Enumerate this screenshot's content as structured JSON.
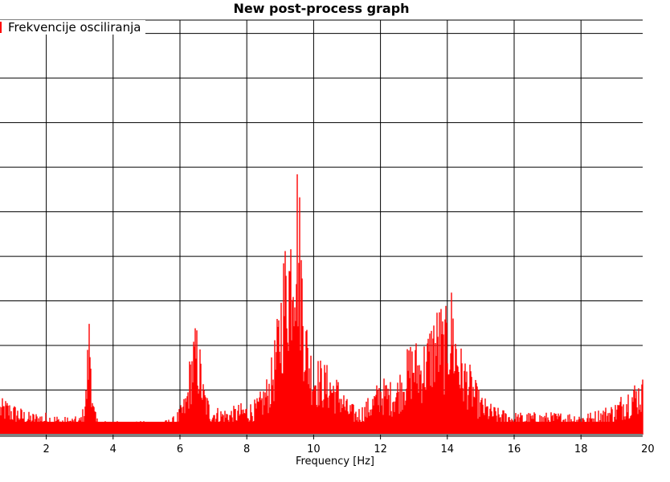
{
  "chart_data": {
    "type": "area",
    "title": "New post-process graph",
    "xlabel": "Frequency [Hz]",
    "ylabel": "",
    "xlim": [
      0.8,
      20.1
    ],
    "ylim": [
      0,
      1
    ],
    "xticks": [
      2,
      4,
      6,
      8,
      10,
      12,
      14,
      16,
      18,
      20
    ],
    "xtick_labels": [
      "2",
      "4",
      "6",
      "8",
      "10",
      "12",
      "14",
      "16",
      "18",
      "20"
    ],
    "y_grid_lines": 9,
    "grid": true,
    "legend_position": "top-left",
    "series": [
      {
        "name": "Frekvencije osciliranja",
        "color": "#ff0000",
        "x": [
          0.8,
          1.0,
          1.5,
          2.0,
          2.5,
          3.0,
          3.1,
          3.2,
          3.25,
          3.3,
          3.35,
          3.4,
          3.5,
          3.8,
          4.0,
          4.5,
          5.0,
          5.5,
          5.8,
          6.0,
          6.2,
          6.3,
          6.4,
          6.5,
          6.6,
          6.7,
          6.9,
          7.2,
          7.5,
          7.8,
          8.0,
          8.3,
          8.5,
          8.7,
          8.9,
          9.0,
          9.1,
          9.2,
          9.3,
          9.4,
          9.5,
          9.6,
          9.7,
          9.8,
          9.9,
          10.0,
          10.2,
          10.5,
          10.8,
          11.0,
          11.3,
          11.5,
          11.8,
          12.0,
          12.3,
          12.5,
          12.7,
          12.9,
          13.0,
          13.2,
          13.4,
          13.6,
          13.8,
          13.9,
          14.0,
          14.1,
          14.15,
          14.2,
          14.3,
          14.4,
          14.5,
          14.6,
          14.8,
          15.0,
          15.3,
          15.5,
          16.0,
          16.5,
          17.0,
          17.5,
          18.0,
          18.3,
          18.6,
          19.0,
          19.3,
          19.6,
          19.9,
          20.1
        ],
        "values": [
          0.08,
          0.07,
          0.05,
          0.05,
          0.04,
          0.04,
          0.06,
          0.12,
          0.24,
          0.3,
          0.2,
          0.08,
          0.04,
          0.03,
          0.03,
          0.03,
          0.03,
          0.03,
          0.04,
          0.06,
          0.1,
          0.18,
          0.23,
          0.25,
          0.2,
          0.12,
          0.07,
          0.06,
          0.06,
          0.07,
          0.07,
          0.08,
          0.11,
          0.15,
          0.25,
          0.33,
          0.42,
          0.47,
          0.51,
          0.62,
          0.65,
          0.53,
          0.36,
          0.26,
          0.21,
          0.18,
          0.17,
          0.15,
          0.12,
          0.08,
          0.06,
          0.07,
          0.1,
          0.13,
          0.12,
          0.13,
          0.17,
          0.21,
          0.22,
          0.2,
          0.23,
          0.28,
          0.3,
          0.26,
          0.3,
          0.32,
          0.35,
          0.28,
          0.25,
          0.2,
          0.18,
          0.17,
          0.13,
          0.09,
          0.07,
          0.06,
          0.05,
          0.05,
          0.05,
          0.05,
          0.05,
          0.05,
          0.06,
          0.07,
          0.1,
          0.12,
          0.13,
          0.08
        ]
      }
    ]
  }
}
